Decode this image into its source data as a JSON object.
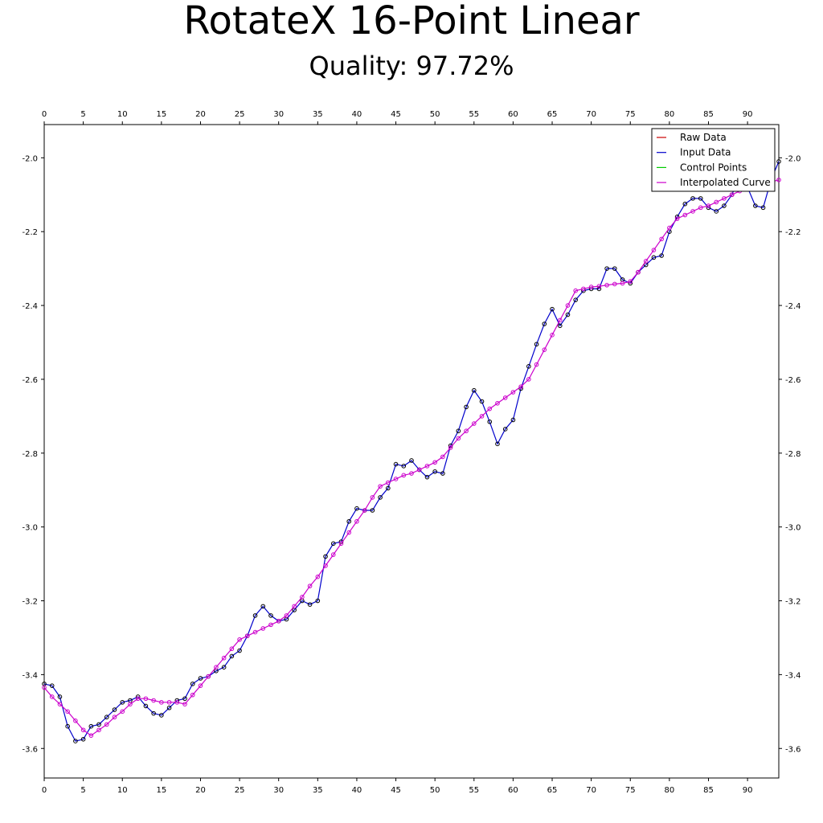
{
  "title": "RotateX 16-Point Linear",
  "subtitle": "Quality: 97.72%",
  "chart_data": {
    "type": "line",
    "xlim": [
      0,
      94
    ],
    "ylim": [
      -3.68,
      -1.91
    ],
    "x_ticks": [
      0,
      5,
      10,
      15,
      20,
      25,
      30,
      35,
      40,
      45,
      50,
      55,
      60,
      65,
      70,
      75,
      80,
      85,
      90
    ],
    "y_ticks": [
      -2.0,
      -2.2,
      -2.4,
      -2.6,
      -2.8,
      -3.0,
      -3.2,
      -3.4,
      -3.6
    ],
    "grid": false,
    "legend_position": "top-right",
    "legend": [
      {
        "name": "Raw Data",
        "color": "#cc0000"
      },
      {
        "name": "Input Data",
        "color": "#0000cc"
      },
      {
        "name": "Control Points",
        "color": "#00cc00"
      },
      {
        "name": "Interpolated Curve",
        "color": "#cc00cc"
      }
    ],
    "series": [
      {
        "name": "Input Data",
        "color": "#0000cc",
        "marker_color": "#000000",
        "x": [
          0,
          1,
          2,
          3,
          4,
          5,
          6,
          7,
          8,
          9,
          10,
          11,
          12,
          13,
          14,
          15,
          16,
          17,
          18,
          19,
          20,
          21,
          22,
          23,
          24,
          25,
          26,
          27,
          28,
          29,
          30,
          31,
          32,
          33,
          34,
          35,
          36,
          37,
          38,
          39,
          40,
          41,
          42,
          43,
          44,
          45,
          46,
          47,
          48,
          49,
          50,
          51,
          52,
          53,
          54,
          55,
          56,
          57,
          58,
          59,
          60,
          61,
          62,
          63,
          64,
          65,
          66,
          67,
          68,
          69,
          70,
          71,
          72,
          73,
          74,
          75,
          76,
          77,
          78,
          79,
          80,
          81,
          82,
          83,
          84,
          85,
          86,
          87,
          88,
          89,
          90,
          91,
          92,
          93,
          94
        ],
        "y": [
          -3.425,
          -3.43,
          -3.46,
          -3.54,
          -3.58,
          -3.575,
          -3.54,
          -3.535,
          -3.515,
          -3.495,
          -3.475,
          -3.47,
          -3.46,
          -3.485,
          -3.505,
          -3.51,
          -3.49,
          -3.47,
          -3.465,
          -3.425,
          -3.41,
          -3.405,
          -3.39,
          -3.38,
          -3.35,
          -3.335,
          -3.295,
          -3.24,
          -3.215,
          -3.24,
          -3.255,
          -3.25,
          -3.225,
          -3.2,
          -3.21,
          -3.2,
          -3.08,
          -3.045,
          -3.04,
          -2.985,
          -2.95,
          -2.955,
          -2.955,
          -2.92,
          -2.895,
          -2.83,
          -2.835,
          -2.82,
          -2.845,
          -2.865,
          -2.85,
          -2.855,
          -2.78,
          -2.74,
          -2.675,
          -2.63,
          -2.66,
          -2.715,
          -2.775,
          -2.735,
          -2.71,
          -2.625,
          -2.565,
          -2.505,
          -2.45,
          -2.41,
          -2.455,
          -2.425,
          -2.385,
          -2.36,
          -2.355,
          -2.355,
          -2.3,
          -2.3,
          -2.33,
          -2.34,
          -2.31,
          -2.29,
          -2.27,
          -2.265,
          -2.2,
          -2.16,
          -2.125,
          -2.11,
          -2.11,
          -2.135,
          -2.145,
          -2.13,
          -2.1,
          -2.045,
          -2.08,
          -2.13,
          -2.135,
          -2.06,
          -2.01
        ]
      },
      {
        "name": "Interpolated Curve",
        "color": "#cc00cc",
        "marker_color": "#cc00cc",
        "x": [
          0,
          1,
          2,
          3,
          4,
          5,
          6,
          7,
          8,
          9,
          10,
          11,
          12,
          13,
          14,
          15,
          16,
          17,
          18,
          19,
          20,
          21,
          22,
          23,
          24,
          25,
          26,
          27,
          28,
          29,
          30,
          31,
          32,
          33,
          34,
          35,
          36,
          37,
          38,
          39,
          40,
          41,
          42,
          43,
          44,
          45,
          46,
          47,
          48,
          49,
          50,
          51,
          52,
          53,
          54,
          55,
          56,
          57,
          58,
          59,
          60,
          61,
          62,
          63,
          64,
          65,
          66,
          67,
          68,
          69,
          70,
          71,
          72,
          73,
          74,
          75,
          76,
          77,
          78,
          79,
          80,
          81,
          82,
          83,
          84,
          85,
          86,
          87,
          88,
          89,
          90,
          91,
          92,
          93,
          94
        ],
        "y": [
          -3.435,
          -3.46,
          -3.48,
          -3.5,
          -3.525,
          -3.55,
          -3.565,
          -3.55,
          -3.535,
          -3.515,
          -3.5,
          -3.48,
          -3.465,
          -3.465,
          -3.47,
          -3.475,
          -3.475,
          -3.475,
          -3.48,
          -3.455,
          -3.43,
          -3.405,
          -3.38,
          -3.355,
          -3.33,
          -3.305,
          -3.295,
          -3.285,
          -3.275,
          -3.265,
          -3.255,
          -3.24,
          -3.215,
          -3.19,
          -3.16,
          -3.135,
          -3.105,
          -3.075,
          -3.045,
          -3.015,
          -2.985,
          -2.955,
          -2.92,
          -2.89,
          -2.88,
          -2.87,
          -2.86,
          -2.855,
          -2.845,
          -2.835,
          -2.825,
          -2.81,
          -2.785,
          -2.76,
          -2.74,
          -2.72,
          -2.7,
          -2.68,
          -2.665,
          -2.65,
          -2.635,
          -2.62,
          -2.6,
          -2.56,
          -2.52,
          -2.48,
          -2.44,
          -2.4,
          -2.36,
          -2.355,
          -2.35,
          -2.348,
          -2.345,
          -2.342,
          -2.34,
          -2.335,
          -2.31,
          -2.28,
          -2.25,
          -2.22,
          -2.19,
          -2.165,
          -2.155,
          -2.145,
          -2.135,
          -2.13,
          -2.12,
          -2.11,
          -2.1,
          -2.09,
          -2.08,
          -2.075,
          -2.07,
          -2.065,
          -2.06
        ]
      }
    ]
  }
}
